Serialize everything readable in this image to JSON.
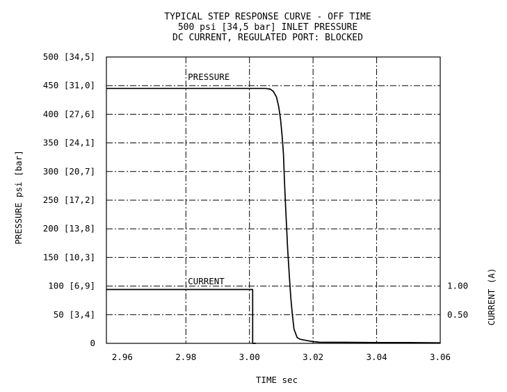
{
  "chart_data": {
    "type": "line",
    "title": [
      "TYPICAL STEP RESPONSE CURVE - OFF TIME",
      "500 psi [34,5 bar] INLET PRESSURE",
      "DC CURRENT, REGULATED PORT: BLOCKED"
    ],
    "xlabel": "TIME sec",
    "ylabel": "PRESSURE psi [bar]",
    "y2label": "CURRENT (A)",
    "xlim": [
      2.955,
      3.06
    ],
    "ylim": [
      0,
      500
    ],
    "y2lim": [
      0,
      5.0
    ],
    "grid": true,
    "x_ticks": [
      {
        "value": 2.96,
        "label": "2.96"
      },
      {
        "value": 2.98,
        "label": "2.98"
      },
      {
        "value": 3.0,
        "label": "3.00"
      },
      {
        "value": 3.02,
        "label": "3.02"
      },
      {
        "value": 3.04,
        "label": "3.04"
      },
      {
        "value": 3.06,
        "label": "3.06"
      }
    ],
    "x_grid": [
      2.98,
      3.0,
      3.02,
      3.04
    ],
    "y_ticks": [
      {
        "value": 0,
        "label": "0"
      },
      {
        "value": 50,
        "label": "50 [3,4]"
      },
      {
        "value": 100,
        "label": "100 [6,9]"
      },
      {
        "value": 150,
        "label": "150 [10,3]"
      },
      {
        "value": 200,
        "label": "200 [13,8]"
      },
      {
        "value": 250,
        "label": "250 [17,2]"
      },
      {
        "value": 300,
        "label": "300 [20,7]"
      },
      {
        "value": 350,
        "label": "350 [24,1]"
      },
      {
        "value": 400,
        "label": "400 [27,6]"
      },
      {
        "value": 450,
        "label": "450 [31,0]"
      },
      {
        "value": 500,
        "label": "500 [34,5]"
      }
    ],
    "y2_ticks": [
      {
        "value": 0.5,
        "label": "0.50"
      },
      {
        "value": 1.0,
        "label": "1.00"
      }
    ],
    "series": [
      {
        "name": "PRESSURE",
        "axis": "left",
        "x": [
          2.955,
          3.005,
          3.0065,
          3.0075,
          3.0085,
          3.0092,
          3.0098,
          3.0103,
          3.0107,
          3.0109,
          3.0111,
          3.0114,
          3.0117,
          3.012,
          3.0125,
          3.013,
          3.0135,
          3.014,
          3.015,
          3.016,
          3.018,
          3.02,
          3.022,
          3.03,
          3.04,
          3.05,
          3.06
        ],
        "y": [
          445,
          445,
          444,
          440,
          430,
          413,
          390,
          360,
          330,
          300,
          270,
          235,
          200,
          165,
          120,
          80,
          50,
          25,
          10,
          7,
          5,
          3,
          2,
          1.8,
          1.5,
          1.3,
          1
        ]
      },
      {
        "name": "CURRENT",
        "axis": "right",
        "x": [
          2.955,
          3.001,
          3.001,
          3.002
        ],
        "y": [
          0.94,
          0.94,
          0.0,
          0.0
        ]
      }
    ],
    "series_labels": [
      {
        "series": "PRESSURE",
        "text": "PRESSURE",
        "x": 2.978,
        "y": 465
      },
      {
        "series": "CURRENT",
        "text": "CURRENT",
        "x": 2.978,
        "y": 108
      }
    ]
  }
}
